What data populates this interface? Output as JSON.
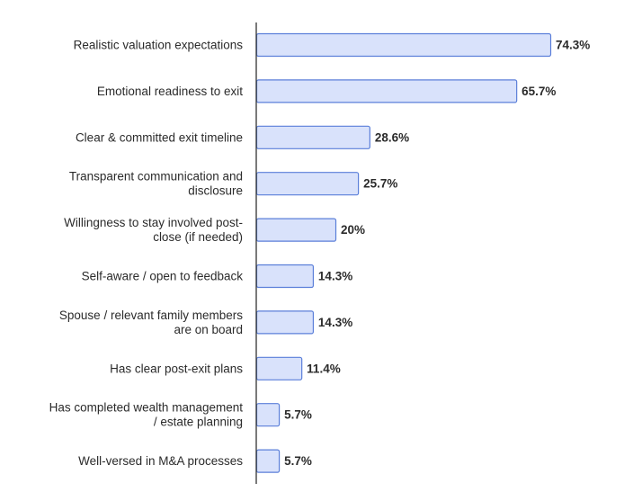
{
  "chart_data": {
    "type": "bar",
    "orientation": "horizontal",
    "categories": [
      [
        "Realistic valuation expectations"
      ],
      [
        "Emotional readiness to exit"
      ],
      [
        "Clear & committed exit timeline"
      ],
      [
        "Transparent communication and",
        "disclosure"
      ],
      [
        "Willingness to stay involved post-",
        "close (if needed)"
      ],
      [
        "Self-aware / open to feedback"
      ],
      [
        "Spouse / relevant family members",
        "are on board"
      ],
      [
        "Has clear post-exit plans"
      ],
      [
        "Has completed wealth management",
        "/ estate planning"
      ],
      [
        "Well-versed in M&A processes"
      ]
    ],
    "values": [
      74.3,
      65.7,
      28.6,
      25.7,
      20,
      14.3,
      14.3,
      11.4,
      5.7,
      5.7
    ],
    "value_labels": [
      "74.3%",
      "65.7%",
      "28.6%",
      "25.7%",
      "20%",
      "14.3%",
      "14.3%",
      "11.4%",
      "5.7%",
      "5.7%"
    ],
    "xlim": [
      0,
      80
    ],
    "grid": false,
    "bar_color": "#d9e2fb",
    "bar_edge_color": "#5b7fd9",
    "axis_color": "#333333"
  }
}
